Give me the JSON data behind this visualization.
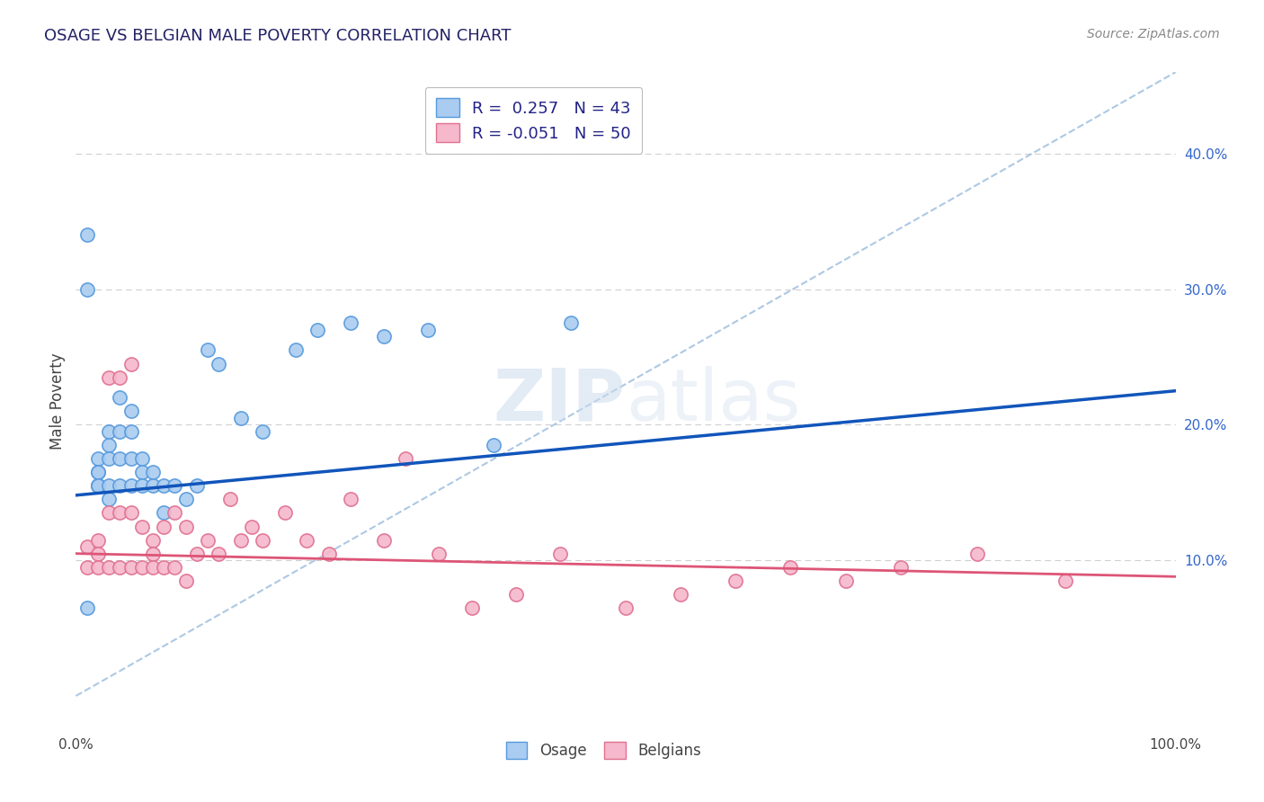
{
  "title": "OSAGE VS BELGIAN MALE POVERTY CORRELATION CHART",
  "source_text": "Source: ZipAtlas.com",
  "ylabel": "Male Poverty",
  "xlim": [
    0.0,
    1.0
  ],
  "ylim": [
    -0.025,
    0.46
  ],
  "x_tick_labels": [
    "0.0%",
    "100.0%"
  ],
  "y_tick_labels_right": [
    "10.0%",
    "20.0%",
    "30.0%",
    "40.0%"
  ],
  "y_tick_values_right": [
    0.1,
    0.2,
    0.3,
    0.4
  ],
  "grid_color": "#d0d0d0",
  "background_color": "#ffffff",
  "osage_color": "#aaccf0",
  "osage_edge_color": "#5599dd",
  "belgian_color": "#f5b8cc",
  "belgian_edge_color": "#e07090",
  "osage_line_color": "#1155bb",
  "belgian_line_color": "#dd5577",
  "dash_line_color": "#99bbdd",
  "legend_line1": "R =  0.257   N = 43",
  "legend_line2": "R = -0.051   N = 50",
  "osage_x": [
    0.01,
    0.01,
    0.01,
    0.02,
    0.02,
    0.02,
    0.02,
    0.02,
    0.02,
    0.03,
    0.03,
    0.03,
    0.03,
    0.03,
    0.04,
    0.04,
    0.04,
    0.04,
    0.05,
    0.05,
    0.05,
    0.05,
    0.06,
    0.06,
    0.06,
    0.07,
    0.07,
    0.08,
    0.08,
    0.09,
    0.1,
    0.11,
    0.12,
    0.13,
    0.15,
    0.17,
    0.2,
    0.22,
    0.25,
    0.28,
    0.32,
    0.38,
    0.45
  ],
  "osage_y": [
    0.34,
    0.3,
    0.065,
    0.175,
    0.165,
    0.155,
    0.155,
    0.165,
    0.155,
    0.195,
    0.185,
    0.175,
    0.155,
    0.145,
    0.22,
    0.195,
    0.175,
    0.155,
    0.21,
    0.195,
    0.175,
    0.155,
    0.175,
    0.165,
    0.155,
    0.165,
    0.155,
    0.155,
    0.135,
    0.155,
    0.145,
    0.155,
    0.255,
    0.245,
    0.205,
    0.195,
    0.255,
    0.27,
    0.275,
    0.265,
    0.27,
    0.185,
    0.275
  ],
  "belgian_x": [
    0.01,
    0.01,
    0.02,
    0.02,
    0.02,
    0.03,
    0.03,
    0.03,
    0.04,
    0.04,
    0.04,
    0.05,
    0.05,
    0.05,
    0.06,
    0.06,
    0.07,
    0.07,
    0.07,
    0.08,
    0.08,
    0.09,
    0.09,
    0.1,
    0.1,
    0.11,
    0.12,
    0.13,
    0.14,
    0.15,
    0.16,
    0.17,
    0.19,
    0.21,
    0.23,
    0.25,
    0.28,
    0.3,
    0.33,
    0.36,
    0.4,
    0.44,
    0.5,
    0.55,
    0.6,
    0.65,
    0.7,
    0.75,
    0.82,
    0.9
  ],
  "belgian_y": [
    0.11,
    0.095,
    0.115,
    0.105,
    0.095,
    0.235,
    0.135,
    0.095,
    0.235,
    0.135,
    0.095,
    0.245,
    0.135,
    0.095,
    0.125,
    0.095,
    0.115,
    0.105,
    0.095,
    0.125,
    0.095,
    0.135,
    0.095,
    0.125,
    0.085,
    0.105,
    0.115,
    0.105,
    0.145,
    0.115,
    0.125,
    0.115,
    0.135,
    0.115,
    0.105,
    0.145,
    0.115,
    0.175,
    0.105,
    0.065,
    0.075,
    0.105,
    0.065,
    0.075,
    0.085,
    0.095,
    0.085,
    0.095,
    0.105,
    0.085
  ],
  "osage_line_x0": 0.0,
  "osage_line_y0": 0.148,
  "osage_line_x1": 1.0,
  "osage_line_y1": 0.225,
  "belgian_line_x0": 0.0,
  "belgian_line_y0": 0.105,
  "belgian_line_x1": 1.0,
  "belgian_line_y1": 0.088,
  "dash_line_x0": 0.0,
  "dash_line_y0": 0.0,
  "dash_line_x1": 1.0,
  "dash_line_y1": 0.46
}
